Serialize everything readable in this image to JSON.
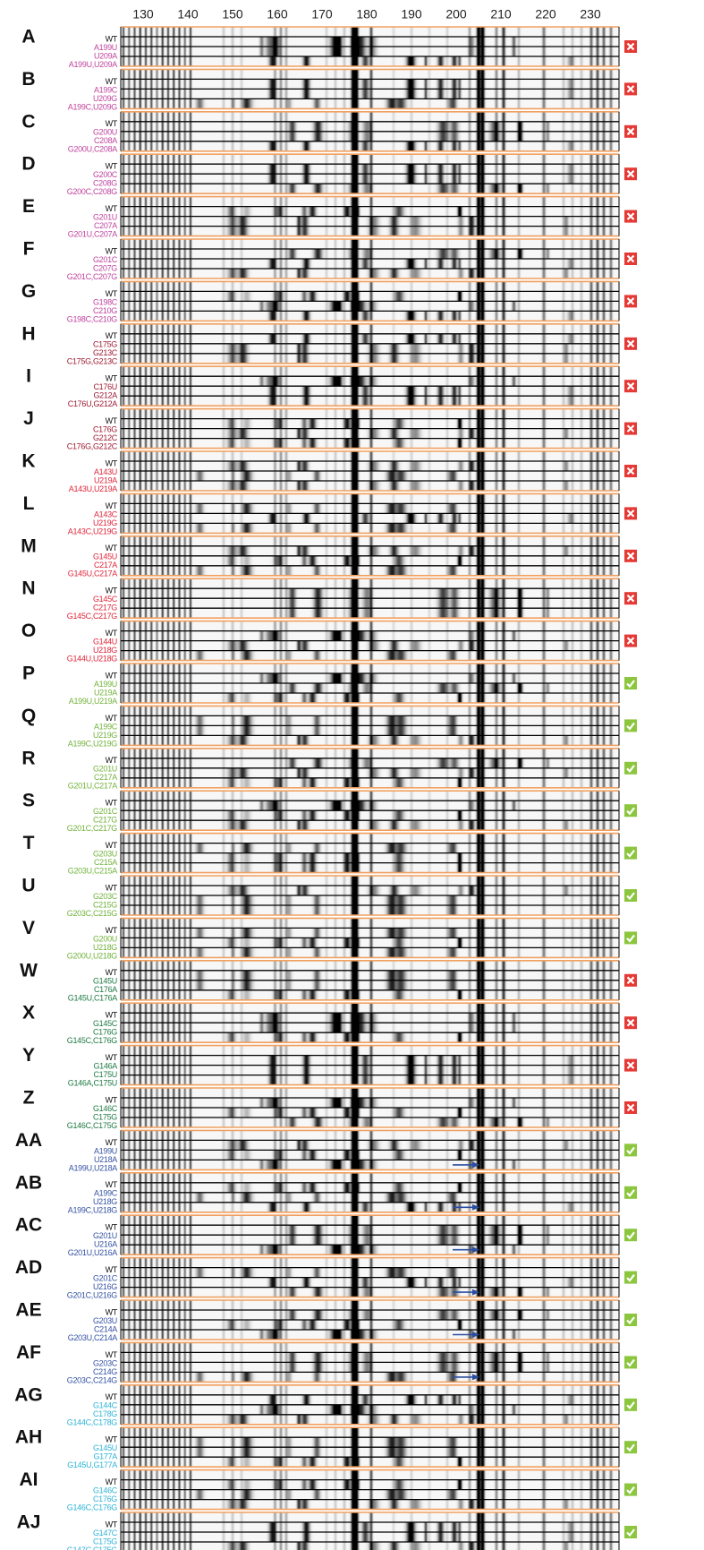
{
  "axis": {
    "xlim": [
      125,
      236.4
    ],
    "xticks": [
      130,
      140,
      150,
      160,
      170,
      180,
      190,
      200,
      210,
      220,
      230
    ]
  },
  "panels": [
    {
      "letter": "A",
      "color": "#c0449e",
      "result": "fail",
      "lanes": [
        "WT",
        "A199U",
        "U209A",
        "A199U,U209A"
      ]
    },
    {
      "letter": "B",
      "color": "#c0449e",
      "result": "fail",
      "lanes": [
        "WT",
        "A199C",
        "U209G",
        "A199C,U209G"
      ]
    },
    {
      "letter": "C",
      "color": "#c0449e",
      "result": "fail",
      "lanes": [
        "WT",
        "G200U",
        "C208A",
        "G200U,C208A"
      ]
    },
    {
      "letter": "D",
      "color": "#c0449e",
      "result": "fail",
      "lanes": [
        "WT",
        "G200C",
        "C208G",
        "G200C,C208G"
      ]
    },
    {
      "letter": "E",
      "color": "#c0449e",
      "result": "fail",
      "lanes": [
        "WT",
        "G201U",
        "C207A",
        "G201U,C207A"
      ]
    },
    {
      "letter": "F",
      "color": "#c0449e",
      "result": "fail",
      "lanes": [
        "WT",
        "G201C",
        "C207G",
        "G201C,C207G"
      ]
    },
    {
      "letter": "G",
      "color": "#c0449e",
      "result": "fail",
      "lanes": [
        "WT",
        "G198C",
        "C210G",
        "G198C,C210G"
      ]
    },
    {
      "letter": "H",
      "color": "#9e1b32",
      "result": "fail",
      "lanes": [
        "WT",
        "C175G",
        "G213C",
        "C175G,G213C"
      ]
    },
    {
      "letter": "I",
      "color": "#9e1b32",
      "result": "fail",
      "lanes": [
        "WT",
        "C176U",
        "G212A",
        "C176U,G212A"
      ]
    },
    {
      "letter": "J",
      "color": "#9e1b32",
      "result": "fail",
      "lanes": [
        "WT",
        "C176G",
        "G212C",
        "C176G,G212C"
      ]
    },
    {
      "letter": "K",
      "color": "#e0263a",
      "result": "fail",
      "lanes": [
        "WT",
        "A143U",
        "U219A",
        "A143U,U219A"
      ]
    },
    {
      "letter": "L",
      "color": "#e0263a",
      "result": "fail",
      "lanes": [
        "WT",
        "A143C",
        "U219G",
        "A143C,U219G"
      ]
    },
    {
      "letter": "M",
      "color": "#e0263a",
      "result": "fail",
      "lanes": [
        "WT",
        "G145U",
        "C217A",
        "G145U,C217A"
      ]
    },
    {
      "letter": "N",
      "color": "#e0263a",
      "result": "fail",
      "lanes": [
        "WT",
        "G145C",
        "C217G",
        "G145C,C217G"
      ]
    },
    {
      "letter": "O",
      "color": "#e0263a",
      "result": "fail",
      "lanes": [
        "WT",
        "G144U",
        "U218G",
        "G144U,U218G"
      ]
    },
    {
      "letter": "P",
      "color": "#72b33b",
      "result": "pass",
      "lanes": [
        "WT",
        "A199U",
        "U219A",
        "A199U,U219A"
      ]
    },
    {
      "letter": "Q",
      "color": "#72b33b",
      "result": "pass",
      "lanes": [
        "WT",
        "A199C",
        "U219G",
        "A199C,U219G"
      ]
    },
    {
      "letter": "R",
      "color": "#72b33b",
      "result": "pass",
      "lanes": [
        "WT",
        "G201U",
        "C217A",
        "G201U,C217A"
      ]
    },
    {
      "letter": "S",
      "color": "#72b33b",
      "result": "pass",
      "lanes": [
        "WT",
        "G201C",
        "C217G",
        "G201C,C217G"
      ]
    },
    {
      "letter": "T",
      "color": "#72b33b",
      "result": "pass",
      "lanes": [
        "WT",
        "G203U",
        "C215A",
        "G203U,C215A"
      ]
    },
    {
      "letter": "U",
      "color": "#72b33b",
      "result": "pass",
      "lanes": [
        "WT",
        "G203C",
        "C215G",
        "G203C,C215G"
      ]
    },
    {
      "letter": "V",
      "color": "#72b33b",
      "result": "pass",
      "lanes": [
        "WT",
        "G200U",
        "U218G",
        "G200U,U218G"
      ]
    },
    {
      "letter": "W",
      "color": "#1f7a44",
      "result": "fail",
      "lanes": [
        "WT",
        "G145U",
        "C176A",
        "G145U,C176A"
      ]
    },
    {
      "letter": "X",
      "color": "#1f7a44",
      "result": "fail",
      "lanes": [
        "WT",
        "G145C",
        "C176G",
        "G145C,C176G"
      ]
    },
    {
      "letter": "Y",
      "color": "#1f7a44",
      "result": "fail",
      "lanes": [
        "WT",
        "G146A",
        "C175U",
        "G146A,C175U"
      ]
    },
    {
      "letter": "Z",
      "color": "#1f7a44",
      "result": "fail",
      "lanes": [
        "WT",
        "G146C",
        "C175G",
        "G146C,C175G"
      ]
    },
    {
      "letter": "AA",
      "color": "#3553a4",
      "result": "pass",
      "arrow": true,
      "lanes": [
        "WT",
        "A199U",
        "U218A",
        "A199U,U218A"
      ]
    },
    {
      "letter": "AB",
      "color": "#3553a4",
      "result": "pass",
      "arrow": true,
      "lanes": [
        "WT",
        "A199C",
        "U218G",
        "A199C,U218G"
      ]
    },
    {
      "letter": "AC",
      "color": "#3553a4",
      "result": "pass",
      "arrow": true,
      "lanes": [
        "WT",
        "G201U",
        "U216A",
        "G201U,U216A"
      ]
    },
    {
      "letter": "AD",
      "color": "#3553a4",
      "result": "pass",
      "arrow": true,
      "lanes": [
        "WT",
        "G201C",
        "U216G",
        "G201C,U216G"
      ]
    },
    {
      "letter": "AE",
      "color": "#3553a4",
      "result": "pass",
      "arrow": true,
      "lanes": [
        "WT",
        "G203U",
        "C214A",
        "G203U,C214A"
      ]
    },
    {
      "letter": "AF",
      "color": "#3553a4",
      "result": "pass",
      "arrow": true,
      "lanes": [
        "WT",
        "G203C",
        "C214G",
        "G203C,C214G"
      ]
    },
    {
      "letter": "AG",
      "color": "#2fb3d6",
      "result": "pass",
      "lanes": [
        "WT",
        "G144C",
        "C178G",
        "G144C,C178G"
      ]
    },
    {
      "letter": "AH",
      "color": "#2fb3d6",
      "result": "pass",
      "lanes": [
        "WT",
        "G145U",
        "G177A",
        "G145U,G177A"
      ]
    },
    {
      "letter": "AI",
      "color": "#2fb3d6",
      "result": "pass",
      "lanes": [
        "WT",
        "G146C",
        "C176G",
        "G146C,C176G"
      ]
    },
    {
      "letter": "AJ",
      "color": "#2fb3d6",
      "result": "pass",
      "lanes": [
        "WT",
        "G147C",
        "C175G",
        "G147C,C175G"
      ]
    }
  ]
}
